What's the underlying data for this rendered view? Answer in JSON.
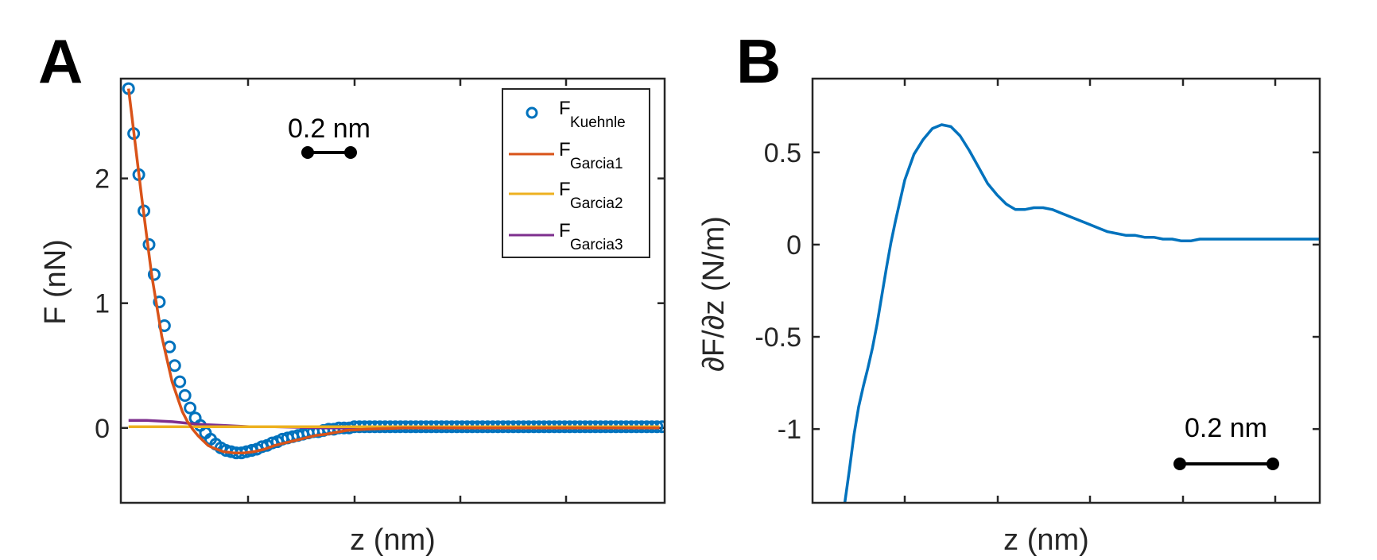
{
  "chart_data": [
    {
      "type": "line",
      "panel_label": "A",
      "xlabel": "z (nm)",
      "ylabel": "F  (nN)",
      "x_tick_labels": "none",
      "xlim": [
        0,
        1.06
      ],
      "ylim": [
        -0.6,
        2.8
      ],
      "yticks": [
        0,
        1,
        2
      ],
      "ytick_labels": [
        "0",
        "1",
        "2"
      ],
      "grid": false,
      "legend_placement": "top-right",
      "scale_bar": {
        "label": "0.2 nm",
        "length_nm": 0.2
      },
      "series": [
        {
          "name": "F",
          "name_sub": "Kuehnle",
          "style": "markers",
          "color": "#0072BD",
          "x": [
            0.015,
            0.025,
            0.035,
            0.045,
            0.055,
            0.065,
            0.075,
            0.085,
            0.095,
            0.105,
            0.115,
            0.125,
            0.135,
            0.145,
            0.155,
            0.165,
            0.175,
            0.185,
            0.195,
            0.205,
            0.215,
            0.225,
            0.235,
            0.245,
            0.255,
            0.265,
            0.275,
            0.285,
            0.295,
            0.305,
            0.315,
            0.325,
            0.335,
            0.345,
            0.355,
            0.365,
            0.375,
            0.385,
            0.395,
            0.405,
            0.415,
            0.425,
            0.435,
            0.445,
            0.455,
            0.465,
            0.475,
            0.485,
            0.495,
            0.505,
            0.515,
            0.525,
            0.535,
            0.545,
            0.555,
            0.565,
            0.575,
            0.585,
            0.595,
            0.605,
            0.615,
            0.625,
            0.635,
            0.645,
            0.655,
            0.665,
            0.675,
            0.685,
            0.695,
            0.705,
            0.715,
            0.725,
            0.735,
            0.745,
            0.755,
            0.765,
            0.775,
            0.785,
            0.795,
            0.805,
            0.815,
            0.825,
            0.835,
            0.845,
            0.855,
            0.865,
            0.875,
            0.885,
            0.895,
            0.905,
            0.915,
            0.925,
            0.935,
            0.945,
            0.955,
            0.965,
            0.975,
            0.985,
            0.995,
            1.005,
            1.015,
            1.025,
            1.035,
            1.045,
            1.055
          ],
          "y": [
            2.72,
            2.36,
            2.03,
            1.74,
            1.47,
            1.23,
            1.01,
            0.82,
            0.65,
            0.5,
            0.37,
            0.26,
            0.16,
            0.08,
            0.02,
            -0.04,
            -0.09,
            -0.13,
            -0.16,
            -0.18,
            -0.19,
            -0.2,
            -0.2,
            -0.19,
            -0.18,
            -0.17,
            -0.15,
            -0.14,
            -0.12,
            -0.11,
            -0.09,
            -0.08,
            -0.07,
            -0.06,
            -0.05,
            -0.04,
            -0.03,
            -0.03,
            -0.02,
            -0.01,
            -0.01,
            0.0,
            0.0,
            0.0,
            0.01,
            0.01,
            0.01,
            0.01,
            0.01,
            0.01,
            0.01,
            0.01,
            0.01,
            0.01,
            0.01,
            0.01,
            0.01,
            0.01,
            0.01,
            0.01,
            0.01,
            0.01,
            0.01,
            0.01,
            0.01,
            0.01,
            0.01,
            0.01,
            0.01,
            0.01,
            0.01,
            0.01,
            0.01,
            0.01,
            0.01,
            0.01,
            0.01,
            0.01,
            0.01,
            0.01,
            0.01,
            0.01,
            0.01,
            0.01,
            0.01,
            0.01,
            0.01,
            0.01,
            0.01,
            0.01,
            0.01,
            0.01,
            0.01,
            0.01,
            0.01,
            0.01,
            0.01,
            0.01,
            0.01,
            0.01,
            0.01,
            0.01,
            0.01,
            0.01,
            0.01
          ]
        },
        {
          "name": "F",
          "name_sub": "Garcia1",
          "style": "line",
          "color": "#D95319",
          "x": [
            0.015,
            0.04,
            0.06,
            0.08,
            0.1,
            0.12,
            0.13,
            0.14,
            0.15,
            0.16,
            0.17,
            0.18,
            0.2,
            0.22,
            0.24,
            0.26,
            0.28,
            0.3,
            0.32,
            0.34,
            0.36,
            0.38,
            0.4,
            0.44,
            0.48,
            0.55,
            0.65,
            0.8,
            1.05
          ],
          "y": [
            2.72,
            1.87,
            1.23,
            0.73,
            0.37,
            0.13,
            0.05,
            -0.01,
            -0.06,
            -0.1,
            -0.14,
            -0.16,
            -0.19,
            -0.2,
            -0.2,
            -0.19,
            -0.17,
            -0.14,
            -0.12,
            -0.1,
            -0.08,
            -0.06,
            -0.05,
            -0.02,
            -0.01,
            0.0,
            0.0,
            0.0,
            0.0
          ]
        },
        {
          "name": "F",
          "name_sub": "Garcia2",
          "style": "line",
          "color": "#EDB120",
          "x": [
            0.015,
            0.1,
            0.2,
            0.4,
            0.7,
            1.05
          ],
          "y": [
            0.01,
            0.01,
            0.01,
            0.01,
            0.01,
            0.01
          ]
        },
        {
          "name": "F",
          "name_sub": "Garcia3",
          "style": "line",
          "color": "#7E2F8E",
          "x": [
            0.015,
            0.05,
            0.1,
            0.15,
            0.2,
            0.25,
            0.3,
            0.4,
            0.5,
            0.7,
            1.05
          ],
          "y": [
            0.06,
            0.06,
            0.05,
            0.03,
            0.02,
            0.01,
            0.01,
            0.0,
            0.0,
            0.0,
            0.0
          ]
        }
      ]
    },
    {
      "type": "line",
      "panel_label": "B",
      "xlabel": "z (nm)",
      "ylabel": "∂F/∂z (N/m)",
      "x_tick_labels": "none",
      "xlim": [
        0,
        1.1
      ],
      "ylim": [
        -1.4,
        0.9
      ],
      "yticks": [
        -1,
        -0.5,
        0,
        0.5
      ],
      "ytick_labels": [
        "-1",
        "-0.5",
        "0",
        "0.5"
      ],
      "grid": false,
      "scale_bar": {
        "label": "0.2 nm",
        "length_nm": 0.2
      },
      "series": [
        {
          "style": "line",
          "color": "#0072BD",
          "x": [
            0.07,
            0.08,
            0.09,
            0.1,
            0.11,
            0.12,
            0.13,
            0.14,
            0.15,
            0.16,
            0.17,
            0.18,
            0.2,
            0.22,
            0.24,
            0.26,
            0.28,
            0.3,
            0.32,
            0.34,
            0.36,
            0.38,
            0.4,
            0.42,
            0.44,
            0.46,
            0.48,
            0.5,
            0.52,
            0.54,
            0.56,
            0.58,
            0.6,
            0.62,
            0.64,
            0.66,
            0.68,
            0.7,
            0.72,
            0.74,
            0.76,
            0.78,
            0.8,
            0.82,
            0.84,
            0.86,
            0.88,
            0.9,
            0.92,
            0.94,
            0.96,
            0.98,
            1.0,
            1.02,
            1.04,
            1.06,
            1.08,
            1.1
          ],
          "y": [
            -1.4,
            -1.22,
            -1.03,
            -0.88,
            -0.77,
            -0.67,
            -0.56,
            -0.43,
            -0.28,
            -0.13,
            0.01,
            0.13,
            0.35,
            0.49,
            0.57,
            0.63,
            0.65,
            0.64,
            0.59,
            0.51,
            0.42,
            0.33,
            0.27,
            0.22,
            0.19,
            0.19,
            0.2,
            0.2,
            0.19,
            0.17,
            0.15,
            0.13,
            0.11,
            0.09,
            0.07,
            0.06,
            0.05,
            0.05,
            0.04,
            0.04,
            0.03,
            0.03,
            0.02,
            0.02,
            0.03,
            0.03,
            0.03,
            0.03,
            0.03,
            0.03,
            0.03,
            0.03,
            0.03,
            0.03,
            0.03,
            0.03,
            0.03,
            0.03
          ]
        }
      ]
    }
  ]
}
